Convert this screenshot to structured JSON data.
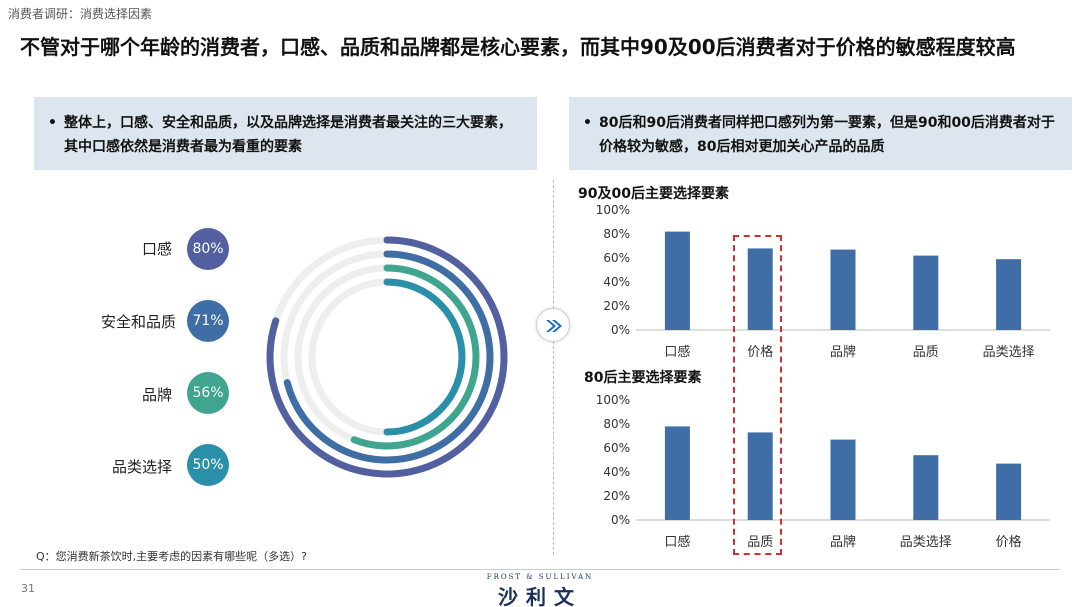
{
  "header": {
    "breadcrumb": "消费者调研：消费选择因素",
    "title": "不管对于哪个年龄的消费者，口感、品质和品牌都是核心要素，而其中90及00后消费者对于价格的敏感程度较高"
  },
  "left_box": {
    "bullet": "•",
    "text": "整体上，口感、安全和品质，以及品牌选择是消费者最关注的三大要素，其中口感依然是消费者最为看重的要素"
  },
  "right_box": {
    "bullet": "•",
    "text": "80后和90后消费者同样把口感列为第一要素，但是90和00后消费者对于价格较为敏感，80后相对更加关心产品的品质"
  },
  "colors": {
    "blue": "#3f6ea6",
    "navy": "#5360a0",
    "teal": "#3fa58e",
    "cyan": "#2a8fa8",
    "track": "#eeeeee",
    "highlight": "#d0312d"
  },
  "chart_data": [
    {
      "type": "radial",
      "categories": [
        "口感",
        "安全和品质",
        "品牌",
        "品类选择"
      ],
      "values": [
        80,
        71,
        56,
        50
      ],
      "value_labels": [
        "80%",
        "71%",
        "56%",
        "50%"
      ],
      "colors": [
        "#5360a0",
        "#3f6ea6",
        "#3fa58e",
        "#2a8fa8"
      ]
    },
    {
      "type": "bar",
      "title": "90及00后主要选择要素",
      "categories": [
        "口感",
        "价格",
        "品牌",
        "品质",
        "品类选择"
      ],
      "values": [
        82,
        68,
        67,
        62,
        59
      ],
      "ylim": [
        0,
        100
      ],
      "yticks": [
        "0%",
        "20%",
        "40%",
        "60%",
        "80%",
        "100%"
      ],
      "highlight_index": 1
    },
    {
      "type": "bar",
      "title": "80后主要选择要素",
      "categories": [
        "口感",
        "品质",
        "品牌",
        "品类选择",
        "价格"
      ],
      "values": [
        78,
        73,
        67,
        54,
        47
      ],
      "ylim": [
        0,
        100
      ],
      "yticks": [
        "0%",
        "20%",
        "40%",
        "60%",
        "80%",
        "100%"
      ],
      "highlight_index": 1
    }
  ],
  "footer": {
    "question": "Q：您消费新茶饮时,主要考虑的因素有哪些呢（多选）?",
    "page": "31",
    "brand_en": "FROST & SULLIVAN",
    "brand_cn": "沙利文"
  }
}
